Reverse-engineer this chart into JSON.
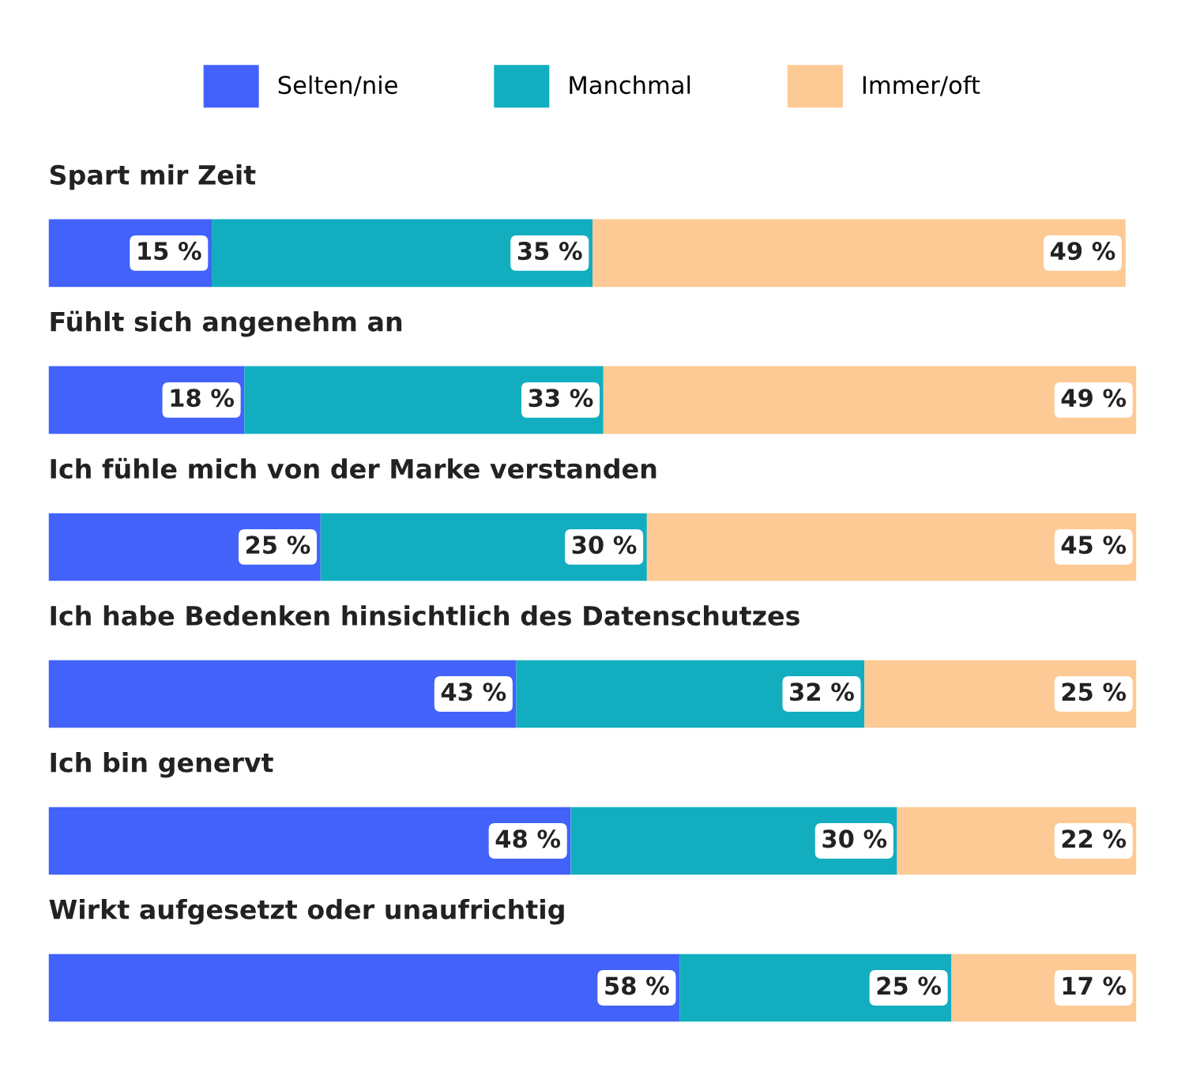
{
  "chart_data": {
    "type": "bar",
    "orientation": "horizontal",
    "stacked": true,
    "legend": "top",
    "tick_labels": false,
    "xlim": [
      0,
      100
    ],
    "categories": [
      "Spart mir Zeit",
      "Fühlt sich angenehm an",
      "Ich fühle mich von der Marke verstanden",
      "Ich habe Bedenken hinsichtlich des Datenschutzes",
      "Ich bin genervt",
      "Wirkt aufgesetzt oder unaufrichtig"
    ],
    "series": [
      {
        "name": "Selten/nie",
        "color": "#4262fa",
        "values": [
          15,
          18,
          25,
          43,
          48,
          58
        ],
        "value_labels": [
          "15 %",
          "18 %",
          "25 %",
          "43 %",
          "48 %",
          "58 %"
        ]
      },
      {
        "name": "Manchmal",
        "color": "#12aebf",
        "values": [
          35,
          33,
          30,
          32,
          30,
          25
        ],
        "value_labels": [
          "35 %",
          "33 %",
          "30 %",
          "32 %",
          "30 %",
          "25 %"
        ]
      },
      {
        "name": "Immer/oft",
        "color": "#fdc994",
        "values": [
          49,
          49,
          45,
          25,
          22,
          17
        ],
        "value_labels": [
          "49 %",
          "49 %",
          "45 %",
          "25 %",
          "22 %",
          "17 %"
        ]
      }
    ]
  }
}
